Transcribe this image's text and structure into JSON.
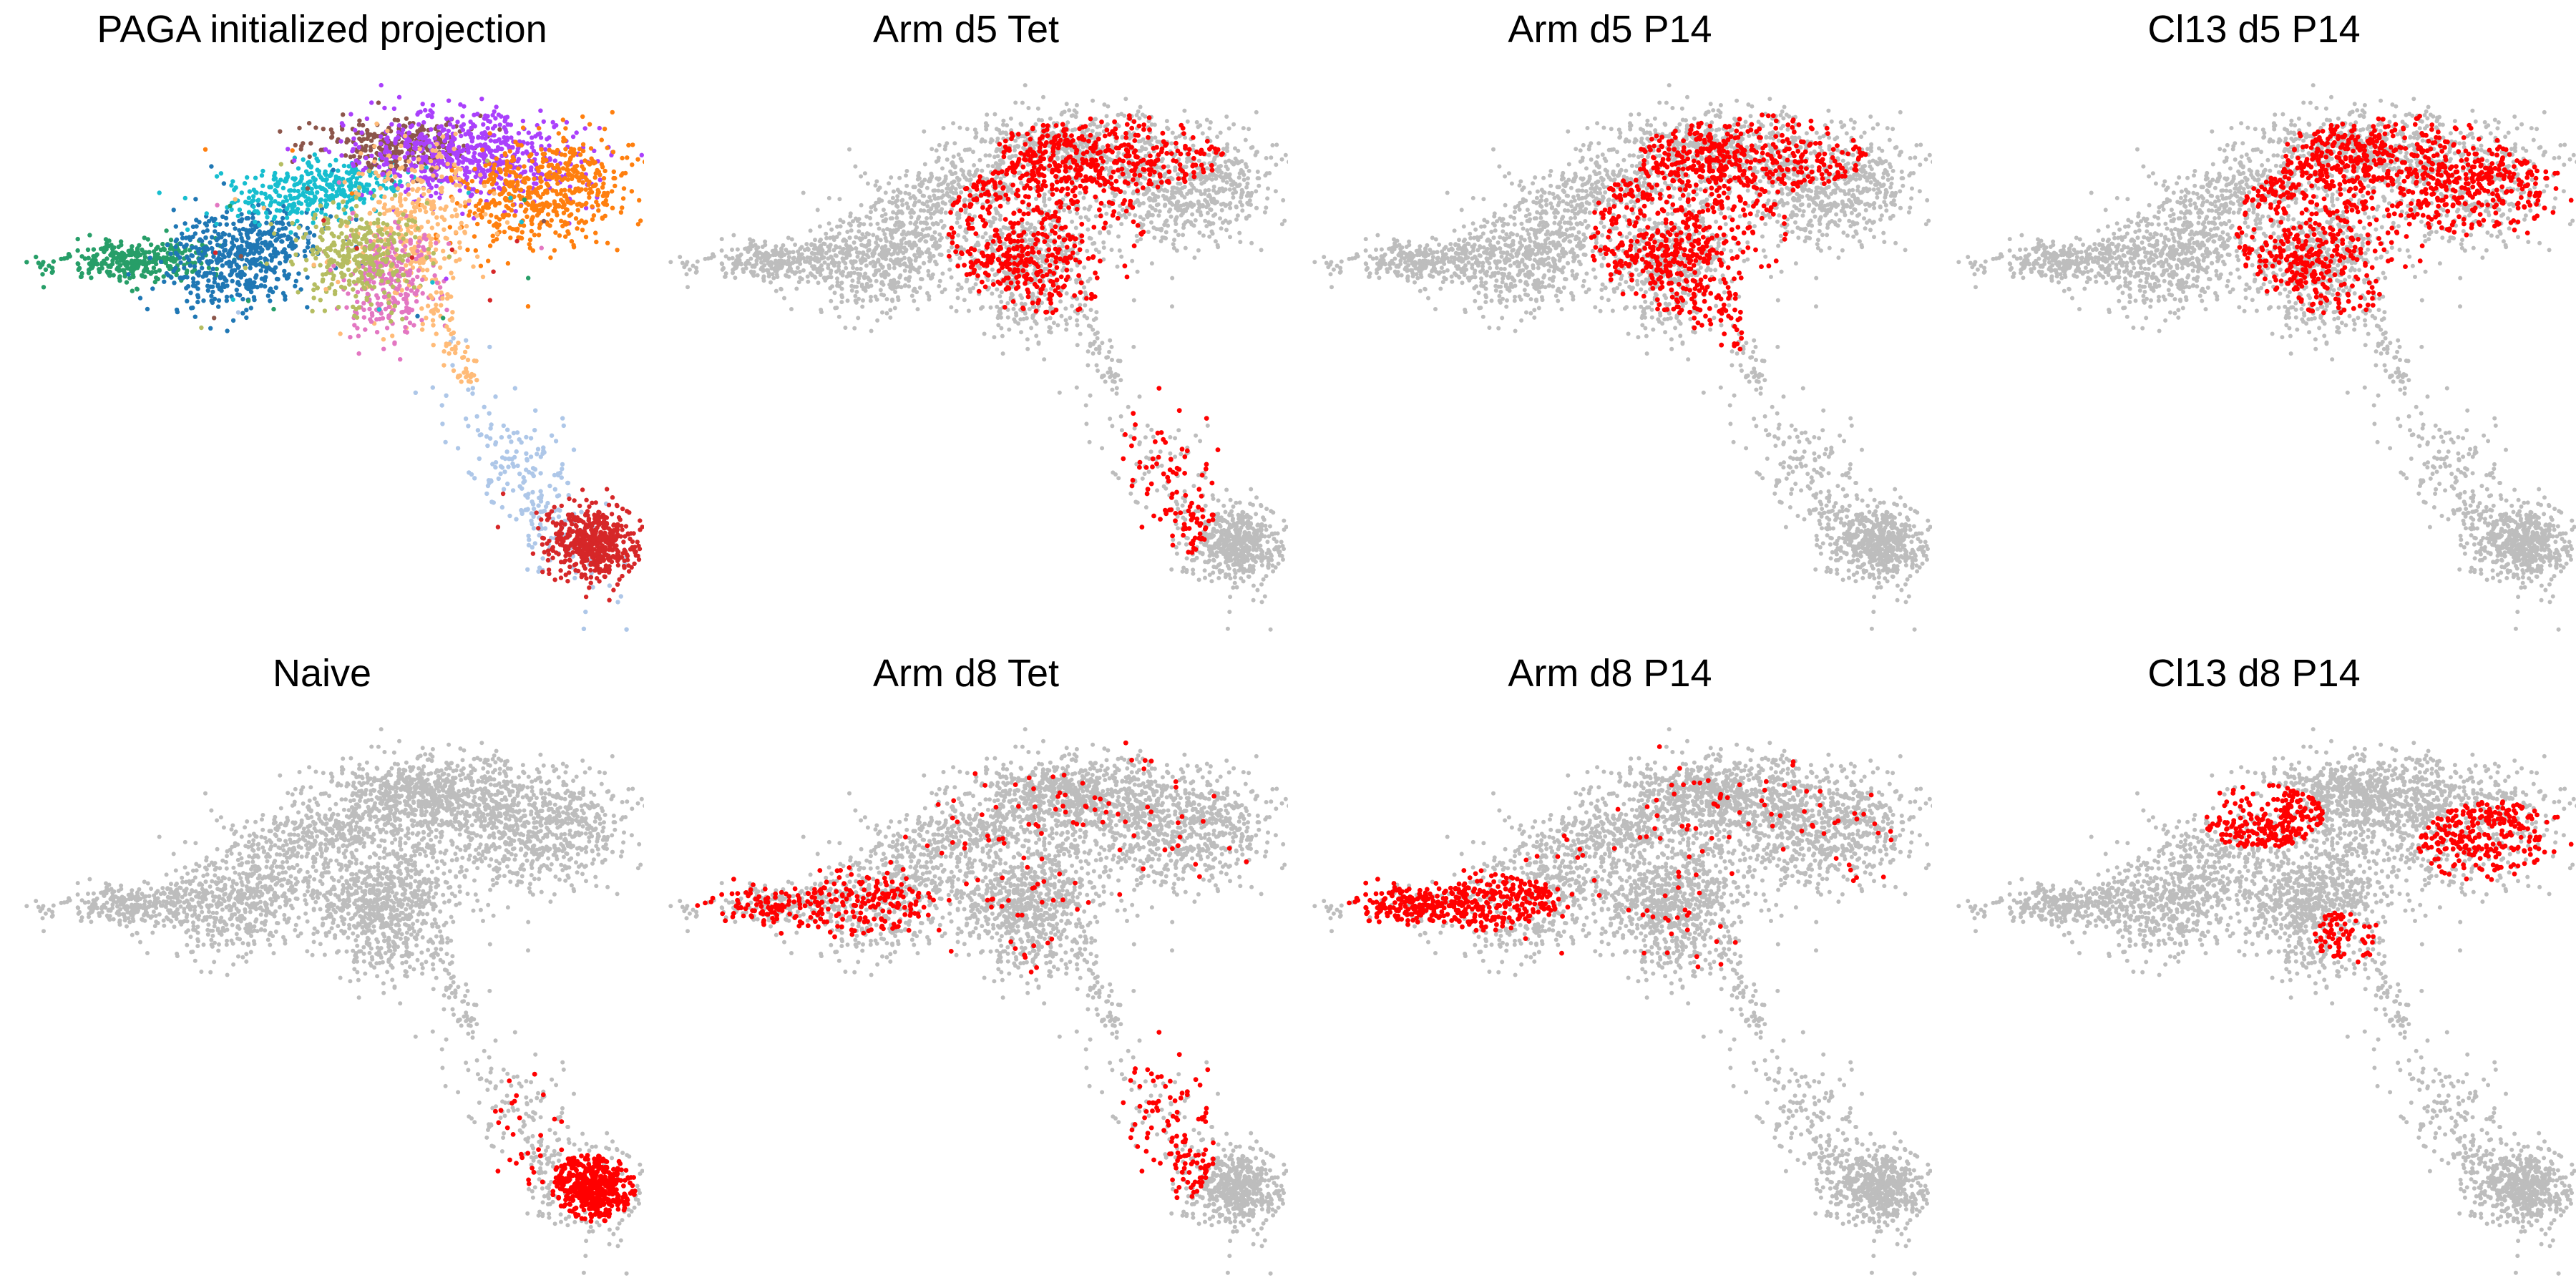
{
  "figure": {
    "background": "#ffffff",
    "background_color": "#bdbdbd",
    "highlight_color": "#ff0000",
    "cluster_palette": [
      "#279e68",
      "#1f77b4",
      "#aec7e8",
      "#d62728",
      "#17becf",
      "#8c564b",
      "#aa40fc",
      "#ff7f0e",
      "#ffbb78",
      "#e377c2",
      "#b5bd61"
    ]
  },
  "chart_data": [
    {
      "type": "scatter",
      "title": "PAGA initialized projection",
      "xlabel": "",
      "ylabel": "",
      "grid": false,
      "axes_visible": false,
      "coloring": "clusters",
      "highlight_regions": []
    },
    {
      "type": "scatter",
      "title": "Arm d5 Tet",
      "xlabel": "",
      "ylabel": "",
      "grid": false,
      "axes_visible": false,
      "coloring": "highlight",
      "highlight_regions": [
        "center",
        "upper",
        "tail"
      ]
    },
    {
      "type": "scatter",
      "title": "Arm d5 P14",
      "xlabel": "",
      "ylabel": "",
      "grid": false,
      "axes_visible": false,
      "coloring": "highlight",
      "highlight_regions": [
        "upper",
        "center",
        "stem"
      ]
    },
    {
      "type": "scatter",
      "title": "Cl13 d5 P14",
      "xlabel": "",
      "ylabel": "",
      "grid": false,
      "axes_visible": false,
      "coloring": "highlight",
      "highlight_regions": [
        "center",
        "right",
        "upper"
      ]
    },
    {
      "type": "scatter",
      "title": "Naive",
      "xlabel": "",
      "ylabel": "",
      "grid": false,
      "axes_visible": false,
      "coloring": "highlight",
      "highlight_regions": [
        "blob",
        "tail_sparse"
      ]
    },
    {
      "type": "scatter",
      "title": "Arm d8 Tet",
      "xlabel": "",
      "ylabel": "",
      "grid": false,
      "axes_visible": false,
      "coloring": "highlight",
      "highlight_regions": [
        "left",
        "tail",
        "sparse"
      ]
    },
    {
      "type": "scatter",
      "title": "Arm d8 P14",
      "xlabel": "",
      "ylabel": "",
      "grid": false,
      "axes_visible": false,
      "coloring": "highlight",
      "highlight_regions": [
        "leftdense",
        "sparse"
      ]
    },
    {
      "type": "scatter",
      "title": "Cl13 d8 P14",
      "xlabel": "",
      "ylabel": "",
      "grid": false,
      "axes_visible": false,
      "coloring": "highlight",
      "highlight_regions": [
        "upperleft",
        "center_lower",
        "right"
      ]
    }
  ]
}
